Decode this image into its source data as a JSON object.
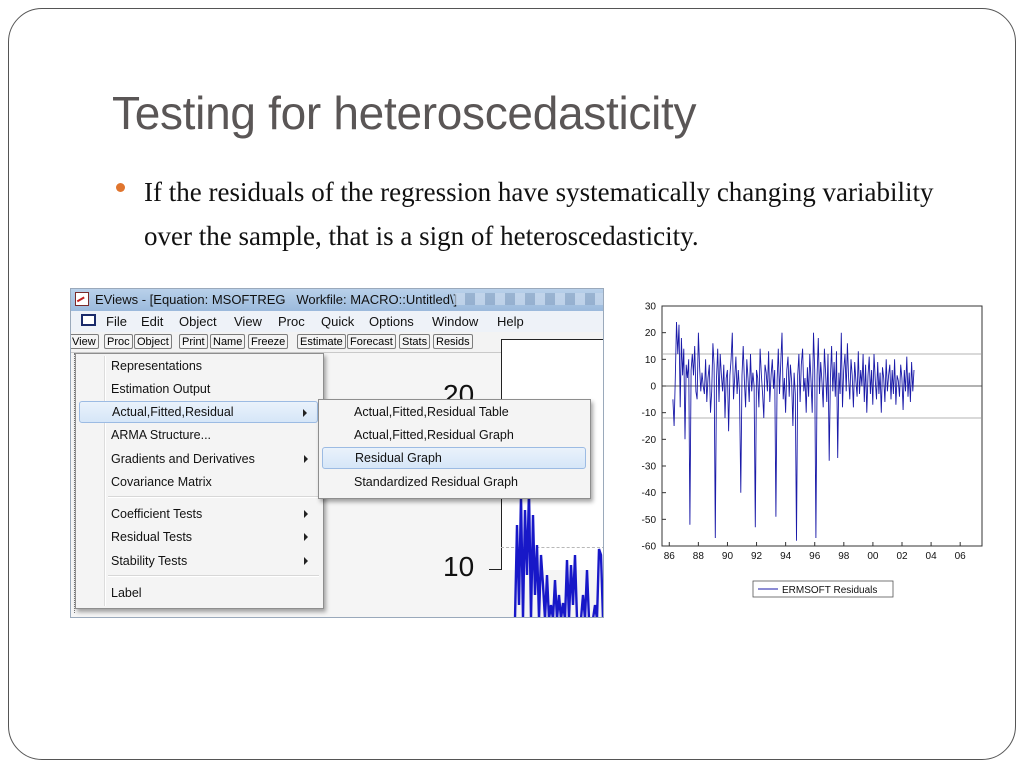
{
  "slide": {
    "title": "Testing for heteroscedasticity",
    "bullet": "If the residuals of the regression have systematically changing variability over the sample, that is a sign of heteroscedasticity.",
    "bullet_color": "#e0752e"
  },
  "eviews": {
    "window_title": "EViews - [Equation: MSOFTREG   Workfile: MACRO::Untitled\\]",
    "menu": [
      "File",
      "Edit",
      "Object",
      "View",
      "Proc",
      "Quick",
      "Options",
      "Window",
      "Help"
    ],
    "toolbar": [
      "View",
      "Proc",
      "Object",
      "Print",
      "Name",
      "Freeze",
      "Estimate",
      "Forecast",
      "Stats",
      "Resids"
    ],
    "context_menu": [
      {
        "label": "Representations",
        "submenu": false
      },
      {
        "label": "Estimation Output",
        "submenu": false
      },
      {
        "label": "Actual,Fitted,Residual",
        "submenu": true,
        "selected": true
      },
      {
        "label": "ARMA Structure...",
        "submenu": false
      },
      {
        "label": "Gradients and Derivatives",
        "submenu": true
      },
      {
        "label": "Covariance Matrix",
        "submenu": false
      },
      {
        "label": "Coefficient Tests",
        "submenu": true
      },
      {
        "label": "Residual Tests",
        "submenu": true
      },
      {
        "label": "Stability Tests",
        "submenu": true
      },
      {
        "label": "Label",
        "submenu": false
      }
    ],
    "submenu": [
      {
        "label": "Actual,Fitted,Residual Table"
      },
      {
        "label": "Actual,Fitted,Residual Graph"
      },
      {
        "label": "Residual Graph",
        "selected": true
      },
      {
        "label": "Standardized Residual Graph"
      }
    ],
    "graph_labels": [
      "20",
      "10"
    ],
    "highlight_color": "#d6e6f8"
  },
  "chart_data": {
    "type": "line",
    "title": "",
    "xlabel": "",
    "ylabel": "",
    "ylim": [
      -60,
      30
    ],
    "xlim": [
      1985.5,
      2007.5
    ],
    "y_ticks": [
      30,
      20,
      10,
      0,
      -10,
      -20,
      -30,
      -40,
      -50,
      -60
    ],
    "x_tick_labels": [
      "86",
      "88",
      "90",
      "92",
      "94",
      "96",
      "98",
      "00",
      "02",
      "04",
      "06"
    ],
    "x_tick_years": [
      1986,
      1988,
      1990,
      1992,
      1994,
      1996,
      1998,
      2000,
      2002,
      2004,
      2006
    ],
    "reference_lines": [
      12,
      -12
    ],
    "grid": false,
    "legend_position": "bottom-center",
    "series": [
      {
        "name": "ERMSOFT Residuals",
        "color": "#1a1aa8",
        "x_start": 1986.25,
        "x_step": 0.0833,
        "values": [
          -5,
          -15,
          3,
          24,
          12,
          23,
          -8,
          18,
          4,
          14,
          -20,
          8,
          3,
          10,
          -52,
          6,
          12,
          4,
          15,
          -2,
          -5,
          20,
          7,
          -2,
          5,
          0,
          -3,
          10,
          -6,
          3,
          8,
          -10,
          -2,
          16,
          8,
          -57,
          3,
          14,
          -6,
          12,
          4,
          -2,
          8,
          -12,
          3,
          6,
          -17,
          4,
          10,
          20,
          -5,
          3,
          11,
          -3,
          6,
          -2,
          -40,
          4,
          15,
          2,
          -8,
          10,
          3,
          -6,
          12,
          -2,
          5,
          0,
          -53,
          6,
          3,
          -8,
          14,
          4,
          -3,
          -12,
          8,
          5,
          -2,
          13,
          -6,
          4,
          10,
          -1,
          6,
          -49,
          2,
          14,
          -3,
          8,
          20,
          -5,
          3,
          -10,
          6,
          11,
          -4,
          8,
          2,
          -15,
          5,
          -3,
          -58,
          4,
          12,
          -6,
          8,
          14,
          -2,
          3,
          -10,
          7,
          -4,
          12,
          2,
          -10,
          20,
          6,
          -57,
          4,
          18,
          -3,
          9,
          2,
          -8,
          14,
          5,
          -6,
          12,
          -28,
          3,
          15,
          -2,
          9,
          -4,
          13,
          -27,
          5,
          -3,
          20,
          -8,
          6,
          12,
          -2,
          16,
          3,
          -5,
          10,
          4,
          -8,
          9,
          2,
          -4,
          13,
          -3,
          6,
          0,
          12,
          -6,
          8,
          -10,
          4,
          11,
          -3,
          6,
          -7,
          12,
          2,
          -5,
          9,
          -3,
          5,
          -10,
          7,
          3,
          -6,
          10,
          -2,
          4,
          8,
          -5,
          6,
          -3,
          10,
          -7,
          4,
          2,
          -4,
          8,
          3,
          -9,
          6,
          -2,
          11,
          -4,
          5,
          -6,
          9,
          -2,
          6
        ]
      }
    ]
  }
}
